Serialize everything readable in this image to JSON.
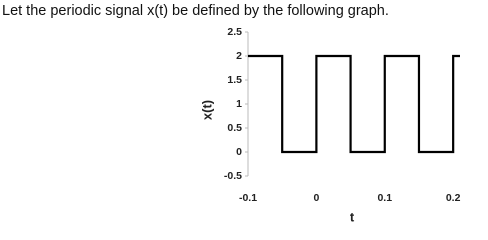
{
  "text": "Let the periodic signal x(t) be defined by the following graph.",
  "chart_data": {
    "type": "line",
    "xlabel": "t",
    "ylabel": "x(t)",
    "x": [
      -0.1,
      -0.05,
      -0.05,
      0,
      0,
      0.05,
      0.05,
      0.1,
      0.1,
      0.15,
      0.15,
      0.2,
      0.2,
      0.21
    ],
    "values": [
      2,
      2,
      0,
      0,
      2,
      2,
      0,
      0,
      2,
      2,
      0,
      0,
      2,
      2
    ],
    "color": "#000000",
    "xlim": [
      -0.1,
      0.21
    ],
    "ylim": [
      -0.5,
      2.5
    ],
    "xticks": [
      -0.1,
      0,
      0.1,
      0.2
    ],
    "yticks": [
      -0.5,
      0,
      0.5,
      1,
      1.5,
      2,
      2.5
    ],
    "grid": false
  }
}
